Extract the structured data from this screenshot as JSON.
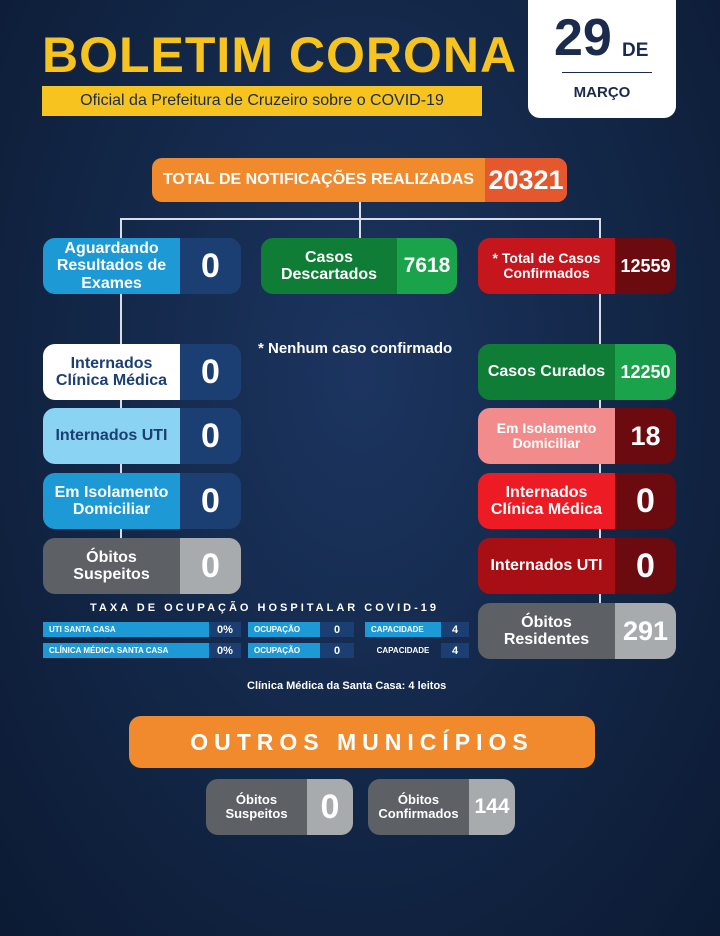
{
  "header": {
    "title": "BOLETIM CORONA",
    "subtitle": "Oficial da Prefeitura de Cruzeiro sobre o COVID-19",
    "date_day": "29",
    "date_de": "DE",
    "date_month": "MARÇO"
  },
  "total": {
    "label": "TOTAL DE NOTIFICAÇÕES REALIZADAS",
    "value": "20321"
  },
  "left": [
    {
      "label": "Aguardando Resultados de Exames",
      "value": "0"
    },
    {
      "label": "Internados Clínica Médica",
      "value": "0"
    },
    {
      "label": "Internados UTI",
      "value": "0"
    },
    {
      "label": "Em Isolamento Domiciliar",
      "value": "0"
    },
    {
      "label": "Óbitos Suspeitos",
      "value": "0"
    }
  ],
  "middle": {
    "label": "Casos Descartados",
    "value": "7618",
    "note": "* Nenhum caso confirmado"
  },
  "right": [
    {
      "label": "* Total de Casos Confirmados",
      "value": "12559"
    },
    {
      "label": "Casos Curados",
      "value": "12250"
    },
    {
      "label": "Em Isolamento Domiciliar",
      "value": "18"
    },
    {
      "label": "Internados Clínica Médica",
      "value": "0"
    },
    {
      "label": "Internados UTI",
      "value": "0"
    },
    {
      "label": "Óbitos Residentes",
      "value": "291"
    }
  ],
  "occupancy": {
    "title": "TAXA DE OCUPAÇÃO HOSPITALAR COVID-19",
    "rows": [
      {
        "name": "UTI SANTA CASA",
        "rate": "0%",
        "occ_label": "OCUPAÇÃO",
        "occ": "0",
        "cap_label": "CAPACIDADE",
        "cap": "4"
      },
      {
        "name": "CLÍNICA MÉDICA SANTA CASA",
        "rate": "0%",
        "occ_label": "OCUPAÇÃO",
        "occ": "0",
        "cap_label": "CAPACIDADE",
        "cap": "4"
      }
    ],
    "footnote": "Clínica Médica da Santa Casa: 4 leitos"
  },
  "outros": {
    "title": "OUTROS MUNICÍPIOS",
    "suspeitos": {
      "label": "Óbitos Suspeitos",
      "value": "0"
    },
    "confirmados": {
      "label": "Óbitos Confirmados",
      "value": "144"
    }
  },
  "colors": {
    "blue_dark": "#1c3f73",
    "blue_mid": "#1d9ad6",
    "blue_light": "#8ad3f2",
    "green": "#1aa34a",
    "green_dark": "#0f7d35",
    "red": "#c4161c",
    "red_dark": "#6b0a0f",
    "pink": "#f28b8b",
    "red_bright": "#ed1c24",
    "gray": "#6f7478",
    "gray_light": "#b3b6b9",
    "orange": "#f08a2c",
    "yellow": "#f7c31f"
  }
}
